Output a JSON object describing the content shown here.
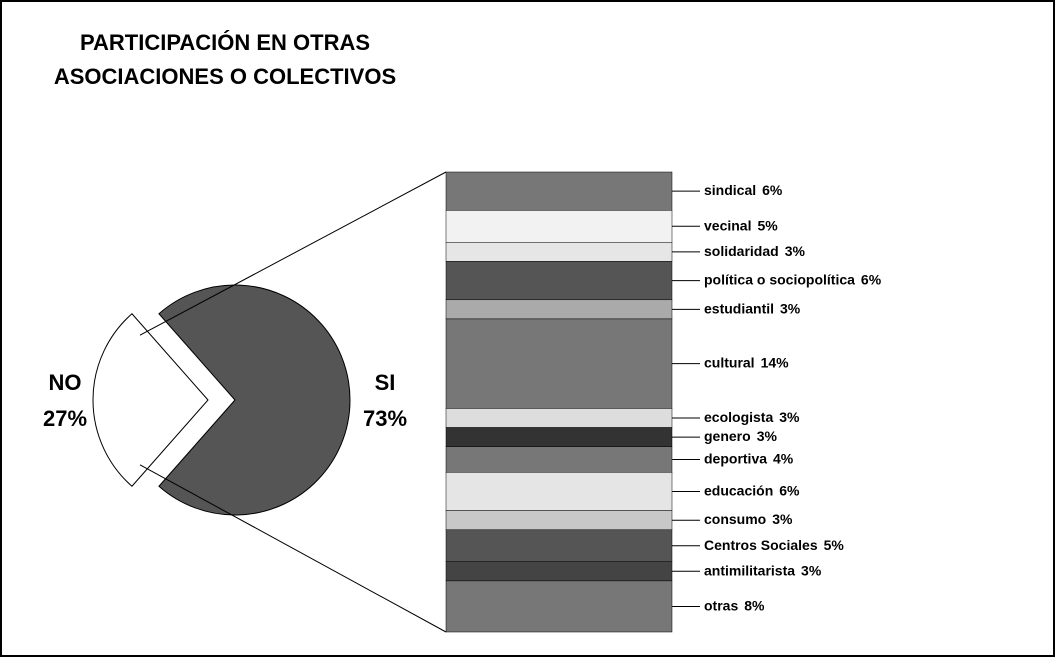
{
  "chart_data": {
    "type": "bar-of-pie",
    "title": [
      "PARTICIPACIÓN EN OTRAS",
      "ASOCIACIONES O COLECTIVOS"
    ],
    "pie": {
      "categories": [
        "NO",
        "SI"
      ],
      "values": [
        27,
        73
      ],
      "value_labels": [
        "27%",
        "73%"
      ],
      "colors": [
        "#ffffff",
        "#555555"
      ]
    },
    "bar": {
      "categories": [
        "sindical",
        "vecinal",
        "solidaridad",
        "política o sociopolítica",
        "estudiantil",
        "cultural",
        "ecologista",
        "genero",
        "deportiva",
        "educación",
        "consumo",
        "Centros Sociales",
        "antimilitarista",
        "otras"
      ],
      "values": [
        6,
        5,
        3,
        6,
        3,
        14,
        3,
        3,
        4,
        6,
        3,
        5,
        3,
        8
      ],
      "value_labels": [
        "6%",
        "5%",
        "3%",
        "6%",
        "3%",
        "14%",
        "3%",
        "3%",
        "4%",
        "6%",
        "3%",
        "5%",
        "3%",
        "8%"
      ],
      "colors": [
        "#777777",
        "#f2f2f2",
        "#e6e6e6",
        "#555555",
        "#aaaaaa",
        "#777777",
        "#dddddd",
        "#333333",
        "#777777",
        "#e5e5e5",
        "#c8c8c8",
        "#555555",
        "#444444",
        "#777777"
      ]
    }
  }
}
